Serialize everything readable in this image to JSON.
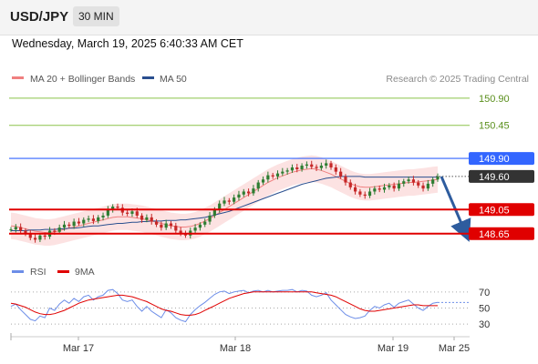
{
  "header": {
    "symbol": "USD/JPY",
    "timeframe": "30 MIN"
  },
  "datetime": "Wednesday, March 19, 2025 6:40:33 AM CET",
  "legend": {
    "ma20": "MA 20 + Bollinger Bands",
    "ma50": "MA 50",
    "research": "Research © 2025 Trading Central",
    "rsi": "RSI",
    "rsi_ma": "9MA"
  },
  "colors": {
    "ma20": "#f08080",
    "ma50": "#2a4f8f",
    "band": "#fbd6d6",
    "resistance_green": "#8bc34a",
    "pivot_blue": "#3366ff",
    "support_red": "#e00000",
    "price_box": "#333333",
    "arrow": "#2e5c9e",
    "candle_up": "#2e7d32",
    "candle_down": "#c62828",
    "rsi": "#6d8ee8",
    "rsi_ma": "#e00000"
  },
  "chart_data": [
    {
      "type": "candlestick",
      "title": "USD/JPY 30 MIN",
      "x_ticks": [
        "Mar 17",
        "Mar 18",
        "Mar 19",
        "Mar 25"
      ],
      "y_range": [
        148.45,
        151.05
      ],
      "levels": [
        {
          "price": 150.9,
          "label": "150.90",
          "kind": "resistance"
        },
        {
          "price": 150.45,
          "label": "150.45",
          "kind": "resistance"
        },
        {
          "price": 149.9,
          "label": "149.90",
          "kind": "pivot"
        },
        {
          "price": 149.6,
          "label": "149.60",
          "kind": "last"
        },
        {
          "price": 149.05,
          "label": "149.05",
          "kind": "support"
        },
        {
          "price": 148.65,
          "label": "148.65",
          "kind": "support"
        }
      ],
      "close": [
        148.72,
        148.76,
        148.7,
        148.66,
        148.58,
        148.55,
        148.62,
        148.6,
        148.7,
        148.68,
        148.75,
        148.8,
        148.78,
        148.85,
        148.82,
        148.88,
        148.9,
        148.86,
        148.92,
        148.95,
        149.05,
        149.1,
        149.08,
        149.0,
        148.98,
        149.02,
        148.95,
        148.88,
        148.92,
        148.85,
        148.8,
        148.75,
        148.82,
        148.78,
        148.7,
        148.66,
        148.62,
        148.7,
        148.75,
        148.8,
        148.85,
        148.95,
        149.05,
        149.15,
        149.2,
        149.18,
        149.25,
        149.3,
        149.35,
        149.32,
        149.4,
        149.5,
        149.55,
        149.62,
        149.6,
        149.65,
        149.68,
        149.7,
        149.75,
        149.72,
        149.78,
        149.8,
        149.76,
        149.74,
        149.78,
        149.82,
        149.75,
        149.68,
        149.6,
        149.5,
        149.42,
        149.35,
        149.3,
        149.28,
        149.35,
        149.4,
        149.38,
        149.42,
        149.45,
        149.4,
        149.48,
        149.52,
        149.55,
        149.5,
        149.45,
        149.4,
        149.48,
        149.55,
        149.6
      ],
      "ma20": [
        148.78,
        148.77,
        148.75,
        148.73,
        148.71,
        148.69,
        148.68,
        148.67,
        148.67,
        148.68,
        148.7,
        148.72,
        148.74,
        148.76,
        148.78,
        148.8,
        148.82,
        148.84,
        148.86,
        148.88,
        148.9,
        148.92,
        148.93,
        148.93,
        148.93,
        148.92,
        148.91,
        148.9,
        148.88,
        148.86,
        148.84,
        148.82,
        148.8,
        148.78,
        148.77,
        148.76,
        148.76,
        148.77,
        148.79,
        148.82,
        148.86,
        148.9,
        148.95,
        149.0,
        149.05,
        149.1,
        149.15,
        149.2,
        149.25,
        149.3,
        149.35,
        149.4,
        149.45,
        149.5,
        149.54,
        149.58,
        149.61,
        149.64,
        149.67,
        149.69,
        149.71,
        149.72,
        149.73,
        149.72,
        149.7,
        149.67,
        149.64,
        149.6,
        149.56,
        149.52,
        149.48,
        149.45,
        149.43,
        149.42,
        149.42,
        149.43,
        149.44,
        149.45,
        149.46,
        149.47,
        149.48,
        149.49,
        149.5,
        149.5,
        149.51,
        149.52,
        149.53,
        149.54,
        149.55
      ],
      "ma50": [
        148.7,
        148.7,
        148.7,
        148.7,
        148.71,
        148.71,
        148.71,
        148.72,
        148.72,
        148.72,
        148.73,
        148.73,
        148.74,
        148.74,
        148.75,
        148.76,
        148.77,
        148.78,
        148.78,
        148.79,
        148.8,
        148.81,
        148.82,
        148.82,
        148.83,
        148.84,
        148.84,
        148.85,
        148.85,
        148.86,
        148.86,
        148.86,
        148.87,
        148.87,
        148.87,
        148.88,
        148.88,
        148.89,
        148.9,
        148.91,
        148.92,
        148.94,
        148.96,
        148.98,
        149.0,
        149.02,
        149.05,
        149.08,
        149.11,
        149.14,
        149.17,
        149.2,
        149.23,
        149.26,
        149.29,
        149.32,
        149.35,
        149.38,
        149.41,
        149.44,
        149.47,
        149.49,
        149.51,
        149.53,
        149.55,
        149.57,
        149.58,
        149.59,
        149.6,
        149.6,
        149.6,
        149.6,
        149.6,
        149.59,
        149.59,
        149.59,
        149.59,
        149.59,
        149.59,
        149.59,
        149.59,
        149.59,
        149.59,
        149.59,
        149.59,
        149.59,
        149.59,
        149.59,
        149.59
      ],
      "band_width": 0.22,
      "projection": {
        "from_price": 149.6,
        "to_price": 148.68
      }
    },
    {
      "type": "line",
      "title": "RSI",
      "y_ticks": [
        70,
        50,
        30
      ],
      "series": [
        {
          "name": "RSI",
          "values": [
            52,
            55,
            48,
            42,
            36,
            34,
            40,
            38,
            50,
            47,
            55,
            60,
            56,
            62,
            58,
            64,
            66,
            60,
            64,
            66,
            72,
            73,
            68,
            60,
            58,
            60,
            52,
            46,
            52,
            46,
            42,
            38,
            48,
            44,
            38,
            35,
            33,
            42,
            48,
            53,
            57,
            62,
            67,
            70,
            71,
            68,
            70,
            71,
            72,
            69,
            71,
            72,
            70,
            72,
            70,
            71,
            72,
            72,
            73,
            70,
            72,
            71,
            66,
            64,
            66,
            69,
            60,
            54,
            48,
            42,
            39,
            37,
            38,
            40,
            47,
            52,
            50,
            54,
            56,
            51,
            56,
            58,
            60,
            55,
            50,
            47,
            52,
            56,
            57
          ]
        },
        {
          "name": "9MA",
          "values": [
            56,
            55,
            53,
            51,
            48,
            45,
            43,
            42,
            42,
            43,
            45,
            47,
            50,
            53,
            56,
            58,
            60,
            61,
            62,
            63,
            64,
            65,
            66,
            66,
            65,
            64,
            62,
            60,
            58,
            55,
            52,
            49,
            47,
            46,
            44,
            42,
            41,
            41,
            42,
            44,
            47,
            50,
            53,
            56,
            59,
            62,
            64,
            66,
            68,
            69,
            70,
            70,
            70,
            70,
            70,
            70,
            70,
            70,
            70,
            70,
            70,
            70,
            70,
            69,
            68,
            67,
            66,
            64,
            61,
            58,
            55,
            52,
            49,
            47,
            46,
            46,
            47,
            48,
            49,
            50,
            51,
            52,
            53,
            54,
            54,
            53,
            53,
            53,
            53
          ]
        }
      ]
    }
  ]
}
